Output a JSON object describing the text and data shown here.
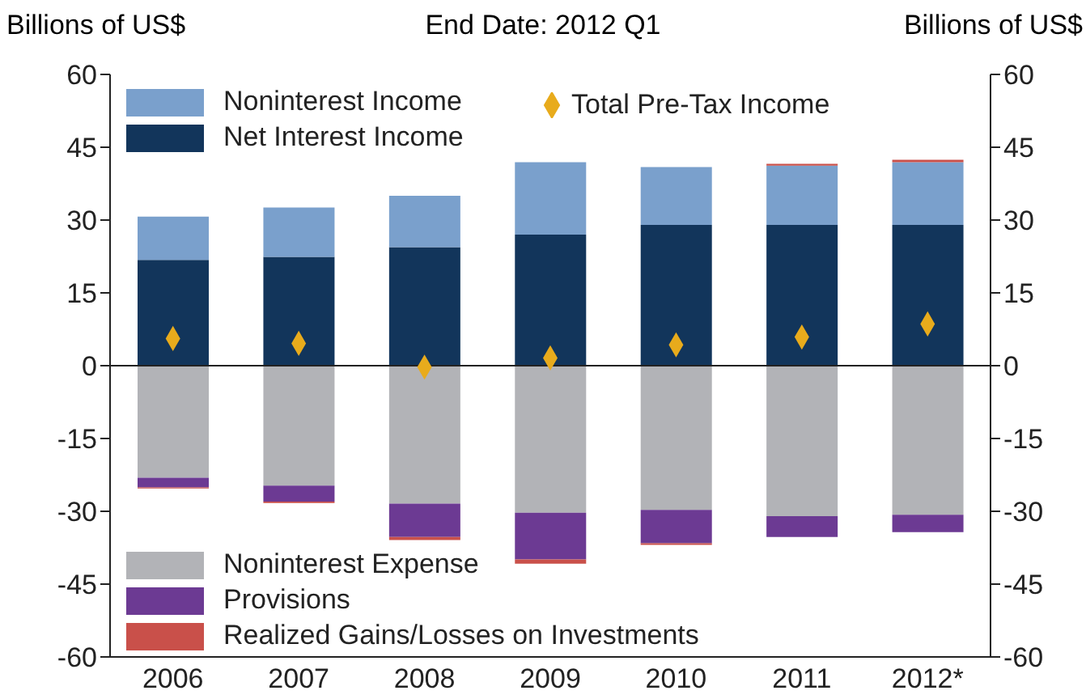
{
  "chart_data": {
    "type": "bar",
    "stacked": true,
    "title": "End Date: 2012 Q1",
    "ylabel": "Billions of US$",
    "y2label": "Billions of US$",
    "categories": [
      "2006",
      "2007",
      "2008",
      "2009",
      "2010",
      "2011",
      "2012*"
    ],
    "series": [
      {
        "name": "Net Interest Income",
        "color": "#12355b",
        "values": [
          21.8,
          22.4,
          24.4,
          27,
          29,
          29,
          29
        ]
      },
      {
        "name": "Noninterest Income",
        "color": "#7aa0cc",
        "values": [
          8.9,
          10.2,
          10.6,
          14.9,
          11.9,
          12.2,
          12.9
        ]
      },
      {
        "name": "Noninterest Expense",
        "color": "#b2b3b7",
        "values": [
          -23.1,
          -24.7,
          -28.4,
          -30.3,
          -29.7,
          -31,
          -30.7
        ]
      },
      {
        "name": "Provisions",
        "color": "#6c3a93",
        "values": [
          -2,
          -3.3,
          -6.9,
          -9.6,
          -6.9,
          -4.3,
          -3.6
        ]
      },
      {
        "name": "Realized Gains/Losses on Investments",
        "color": "#c9504a",
        "values": [
          -0.2,
          -0.3,
          -0.6,
          -0.9,
          -0.3,
          0.4,
          0.5
        ]
      },
      {
        "name": "Total Pre-Tax Income",
        "type": "scatter",
        "marker": "diamond",
        "color": "#e8ab1c",
        "values": [
          5.6,
          4.6,
          -0.3,
          1.6,
          4.3,
          5.9,
          8.6
        ]
      }
    ],
    "ylim": [
      -60,
      60
    ],
    "yticks": [
      -60,
      -45,
      -30,
      -15,
      0,
      15,
      30,
      45,
      60
    ],
    "y2lim": [
      -60,
      60
    ],
    "y2ticks": [
      -60,
      -45,
      -30,
      -15,
      0,
      15,
      30,
      45,
      60
    ],
    "ref_lines": [
      {
        "axis": "y",
        "value": 0
      }
    ],
    "legend": "left"
  }
}
